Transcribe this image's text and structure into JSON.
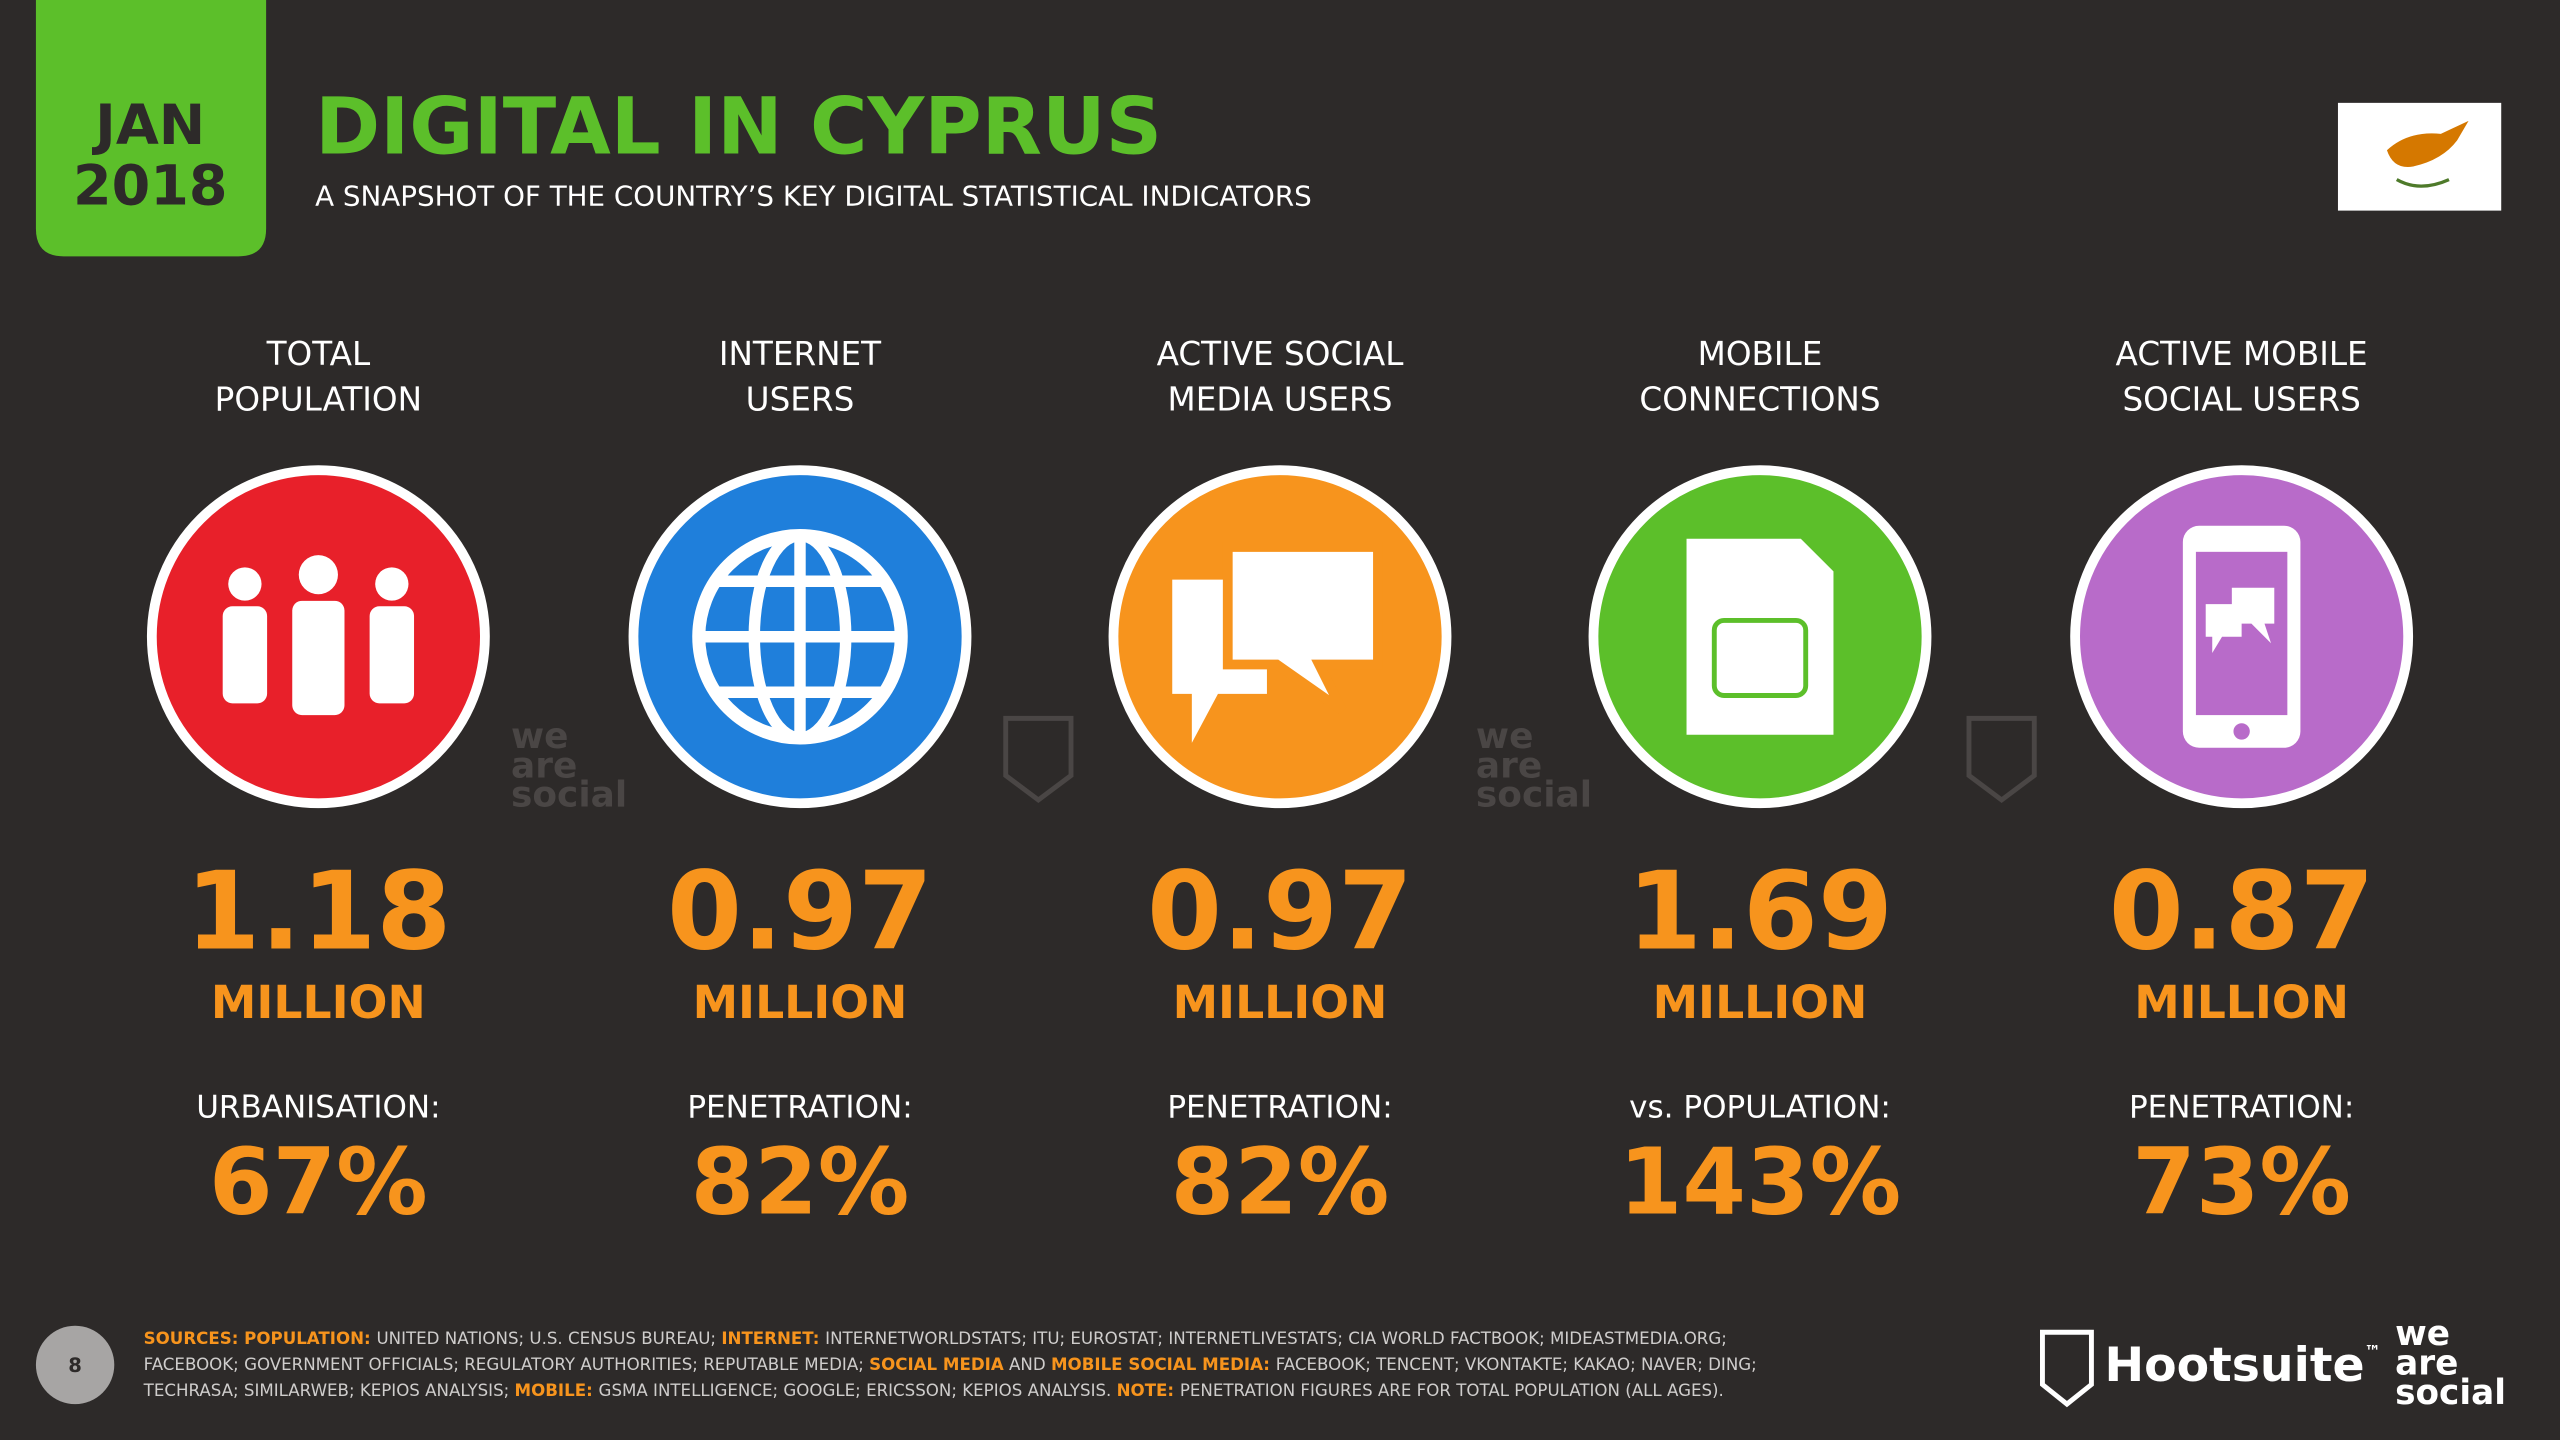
{
  "header": {
    "month": "JAN",
    "year": "2018",
    "title": "DIGITAL IN CYPRUS",
    "subtitle": "A SNAPSHOT OF THE COUNTRY’S KEY DIGITAL STATISTICAL INDICATORS"
  },
  "indicators": [
    {
      "label": [
        "TOTAL",
        "POPULATION"
      ],
      "value": "1.18",
      "unit": "MILLION",
      "sub_label": "URBANISATION:",
      "sub_value": "67%",
      "color": "#e8202a"
    },
    {
      "label": [
        "INTERNET",
        "USERS"
      ],
      "value": "0.97",
      "unit": "MILLION",
      "sub_label": "PENETRATION:",
      "sub_value": "82%",
      "color": "#1f7fdb"
    },
    {
      "label": [
        "ACTIVE SOCIAL",
        "MEDIA USERS"
      ],
      "value": "0.97",
      "unit": "MILLION",
      "sub_label": "PENETRATION:",
      "sub_value": "82%",
      "color": "#f7941d"
    },
    {
      "label": [
        "MOBILE",
        "CONNECTIONS"
      ],
      "value": "1.69",
      "unit": "MILLION",
      "sub_label": "vs. POPULATION:",
      "sub_value": "143%",
      "color": "#5cbf2a"
    },
    {
      "label": [
        "ACTIVE MOBILE",
        "SOCIAL USERS"
      ],
      "value": "0.87",
      "unit": "MILLION",
      "sub_label": "PENETRATION:",
      "sub_value": "73%",
      "color": "#b86bc9"
    }
  ],
  "watermark": [
    "we",
    "are",
    "social"
  ],
  "footer": {
    "page": "8",
    "sources": [
      [
        {
          "text": "SOURCES: ",
          "highlight": true
        },
        {
          "text": "POPULATION: ",
          "highlight": true
        },
        {
          "text": "UNITED NATIONS; U.S. CENSUS BUREAU; ",
          "highlight": false
        },
        {
          "text": "INTERNET: ",
          "highlight": true
        },
        {
          "text": "INTERNETWORLDSTATS; ITU; EUROSTAT; INTERNETLIVESTATS; CIA WORLD FACTBOOK; MIDEASTMEDIA.ORG;",
          "highlight": false
        }
      ],
      [
        {
          "text": "FACEBOOK; GOVERNMENT OFFICIALS; REGULATORY AUTHORITIES; REPUTABLE MEDIA; ",
          "highlight": false
        },
        {
          "text": "SOCIAL MEDIA",
          "highlight": true
        },
        {
          "text": " AND ",
          "highlight": false
        },
        {
          "text": "MOBILE SOCIAL MEDIA: ",
          "highlight": true
        },
        {
          "text": "FACEBOOK; TENCENT; VKONTAKTE; KAKAO; NAVER; DING;",
          "highlight": false
        }
      ],
      [
        {
          "text": "TECHRASA; SIMILARWEB; KEPIOS ANALYSIS; ",
          "highlight": false
        },
        {
          "text": "MOBILE: ",
          "highlight": true
        },
        {
          "text": "GSMA INTELLIGENCE; GOOGLE; ERICSSON; KEPIOS ANALYSIS. ",
          "highlight": false
        },
        {
          "text": "NOTE: ",
          "highlight": true
        },
        {
          "text": "PENETRATION FIGURES ARE FOR TOTAL POPULATION (ALL AGES).",
          "highlight": false
        }
      ]
    ],
    "brand": "Hootsuite",
    "brand_mark": "™",
    "logo": [
      "we",
      "are",
      "social"
    ]
  }
}
